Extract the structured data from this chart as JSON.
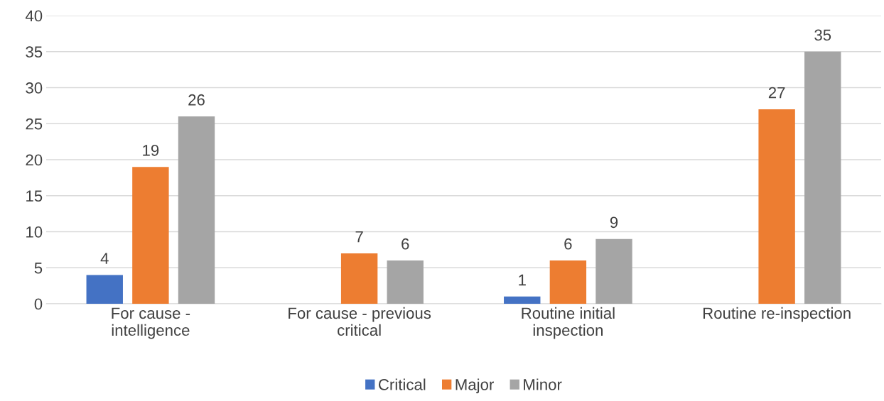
{
  "chart_data": {
    "type": "bar",
    "categories": [
      "For cause -\nintelligence",
      "For cause - previous\ncritical",
      "Routine initial\ninspection",
      "Routine re-inspection"
    ],
    "series": [
      {
        "name": "Critical",
        "color": "#4472c4",
        "values": [
          4,
          null,
          1,
          null
        ]
      },
      {
        "name": "Major",
        "color": "#ed7d31",
        "values": [
          19,
          7,
          6,
          27
        ]
      },
      {
        "name": "Minor",
        "color": "#a5a5a5",
        "values": [
          26,
          6,
          9,
          35
        ]
      }
    ],
    "ylim": [
      0,
      40
    ],
    "yticks": [
      0,
      5,
      10,
      15,
      20,
      25,
      30,
      35,
      40
    ],
    "grid": "y",
    "legend": "bottom",
    "data_labels": true
  }
}
